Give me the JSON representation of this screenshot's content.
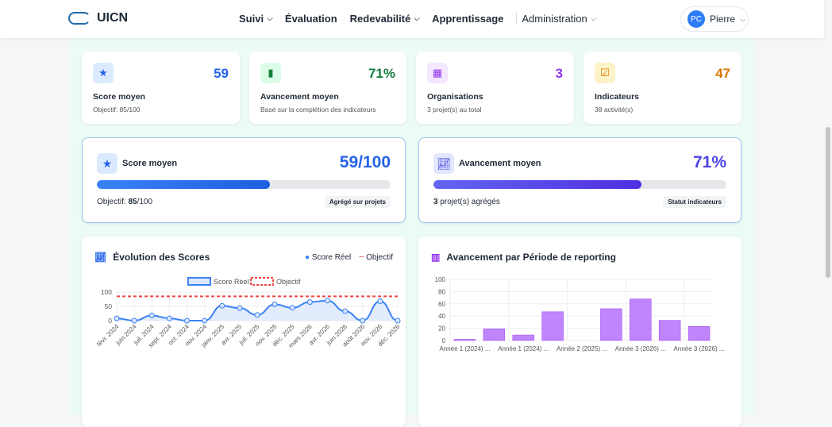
{
  "header": {
    "logo_text": "UICN",
    "nav": [
      "Suivi",
      "Évaluation",
      "Redevabilité",
      "Apprentissage",
      "Administration"
    ],
    "user": {
      "initials": "PC",
      "name": "Pierre"
    }
  },
  "stats": [
    {
      "icon": "star-icon",
      "value": "59",
      "title": "Score moyen",
      "sub": "Objectif: 85/100",
      "color": "#2563eb",
      "bg": "#dbeafe"
    },
    {
      "icon": "bar-chart-icon",
      "value": "71%",
      "title": "Avancement moyen",
      "sub": "Basé sur la complétion des indicateurs",
      "color": "#15803d",
      "bg": "#dcfce7"
    },
    {
      "icon": "building-icon",
      "value": "3",
      "title": "Organisations",
      "sub": "3 projet(s) au total",
      "color": "#9333ea",
      "bg": "#f3e8ff"
    },
    {
      "icon": "checklist-icon",
      "value": "47",
      "title": "Indicateurs",
      "sub": "38 activité(s)",
      "color": "#d97706",
      "bg": "#fef3c7"
    }
  ],
  "score_card": {
    "title": "Score moyen",
    "value": "59/100",
    "progress": 59,
    "foot_label": "Objectif:",
    "foot_value": "85",
    "foot_unit": "/100",
    "badge": "Agrégé sur projets"
  },
  "progress_card": {
    "title": "Avancement moyen",
    "value": "71%",
    "progress": 71,
    "foot_value": "3",
    "foot_label": "projet(s) agrégés",
    "badge": "Statut indicateurs"
  },
  "chart_data": [
    {
      "type": "line",
      "title": "Évolution des Scores",
      "legend": [
        "Score Réel",
        "Objectif"
      ],
      "x": [
        "févr. 2024",
        "juin 2024",
        "juil. 2024",
        "sept. 2024",
        "oct. 2024",
        "nov. 2024",
        "janv. 2025",
        "avr. 2025",
        "juil. 2025",
        "nov. 2025",
        "déc. 2025",
        "mars 2026",
        "avr. 2026",
        "juin 2026",
        "août 2026",
        "nov. 2026",
        "déc. 2026"
      ],
      "series": [
        {
          "name": "Score Réel",
          "values": [
            8,
            0,
            18,
            8,
            0,
            0,
            52,
            44,
            20,
            57,
            45,
            65,
            70,
            33,
            0,
            68,
            0
          ],
          "color": "#3b82f6"
        },
        {
          "name": "Objectif",
          "values": [
            85,
            85,
            85,
            85,
            85,
            85,
            85,
            85,
            85,
            85,
            85,
            85,
            85,
            85,
            85,
            85,
            85
          ],
          "color": "#ef4444"
        }
      ],
      "ylim": [
        0,
        100
      ],
      "yticks": [
        0,
        50,
        100
      ],
      "grid": true
    },
    {
      "type": "bar",
      "title": "Avancement par Période de reporting",
      "categories": [
        "Année 1 (2024) ...",
        "",
        "Année 1 (2024) ...",
        "",
        "Année 2 (2025) ...",
        "",
        "Année 3 (2026) ...",
        "",
        "Année 3 (2026) ..."
      ],
      "values": [
        2,
        19,
        9,
        47,
        0,
        52,
        68,
        33,
        23
      ],
      "color": "#c084fc",
      "ylim": [
        0,
        100
      ],
      "yticks": [
        0,
        20,
        40,
        60,
        80,
        100
      ],
      "grid": true
    }
  ]
}
